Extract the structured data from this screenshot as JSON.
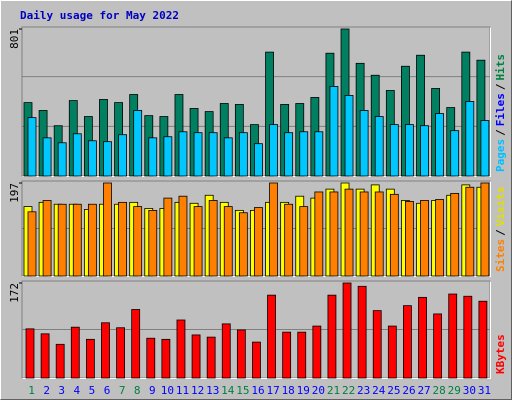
{
  "chart_data": [
    {
      "type": "bar",
      "title": "Daily usage for May 2022",
      "ylim": [
        0,
        801
      ],
      "yticks": [
        801
      ],
      "legend": [
        {
          "text": "Pages",
          "color": "#00c0ff"
        },
        {
          "text": "/",
          "color": "#000000"
        },
        {
          "text": "Files",
          "color": "#0000ff"
        },
        {
          "text": "/",
          "color": "#000000"
        },
        {
          "text": "Hits",
          "color": "#008040"
        }
      ],
      "series": [
        {
          "name": "Hits",
          "color": "#008060",
          "values": [
            400,
            357,
            274,
            411,
            324,
            417,
            400,
            444,
            329,
            324,
            444,
            368,
            351,
            395,
            390,
            280,
            675,
            390,
            395,
            428,
            669,
            801,
            614,
            549,
            466,
            598,
            658,
            477,
            373,
            675,
            631
          ]
        },
        {
          "name": "Pages",
          "color": "#00c8ff",
          "values": [
            318,
            208,
            181,
            230,
            192,
            187,
            225,
            357,
            208,
            214,
            241,
            236,
            236,
            208,
            236,
            176,
            280,
            236,
            241,
            241,
            488,
            439,
            357,
            324,
            280,
            280,
            274,
            340,
            247,
            406,
            302
          ]
        }
      ]
    },
    {
      "type": "bar",
      "ylim": [
        0,
        197
      ],
      "yticks": [
        197
      ],
      "legend": [
        {
          "text": "Sites",
          "color": "#ff8000"
        },
        {
          "text": "/",
          "color": "#000000"
        },
        {
          "text": "Visits",
          "color": "#e0e000"
        }
      ],
      "series": [
        {
          "name": "Visits",
          "color": "#ffff00",
          "values": [
            147,
            156,
            152,
            152,
            141,
            152,
            152,
            156,
            143,
            143,
            156,
            154,
            171,
            156,
            139,
            139,
            156,
            156,
            169,
            165,
            184,
            197,
            184,
            193,
            184,
            160,
            154,
            160,
            171,
            193,
            188
          ]
        },
        {
          "name": "Sites",
          "color": "#ff8000",
          "values": [
            136,
            160,
            152,
            152,
            152,
            197,
            156,
            147,
            139,
            165,
            169,
            147,
            160,
            147,
            134,
            145,
            197,
            152,
            147,
            178,
            178,
            184,
            178,
            178,
            173,
            158,
            160,
            162,
            175,
            188,
            197
          ]
        }
      ]
    },
    {
      "type": "bar",
      "ylim": [
        0,
        172
      ],
      "yticks": [
        172
      ],
      "legend": [
        {
          "text": "KBytes",
          "color": "#ff0000"
        }
      ],
      "categories": [
        "1",
        "2",
        "3",
        "4",
        "5",
        "6",
        "7",
        "8",
        "9",
        "10",
        "11",
        "12",
        "13",
        "14",
        "15",
        "16",
        "17",
        "18",
        "19",
        "20",
        "21",
        "22",
        "23",
        "24",
        "25",
        "26",
        "27",
        "28",
        "29",
        "30",
        "31"
      ],
      "category_colors": [
        "#008040",
        "#0000ff",
        "#0000ff",
        "#0000ff",
        "#0000ff",
        "#0000ff",
        "#008040",
        "#008040",
        "#0000ff",
        "#0000ff",
        "#0000ff",
        "#0000ff",
        "#0000ff",
        "#008040",
        "#008040",
        "#0000ff",
        "#0000ff",
        "#0000ff",
        "#0000ff",
        "#0000ff",
        "#008040",
        "#008040",
        "#0000ff",
        "#0000ff",
        "#0000ff",
        "#0000ff",
        "#0000ff",
        "#008040",
        "#008040",
        "#0000ff",
        "#0000ff"
      ],
      "series": [
        {
          "name": "KBytes",
          "color": "#ff0000",
          "values": [
            89,
            80,
            61,
            92,
            70,
            100,
            91,
            124,
            72,
            70,
            105,
            78,
            74,
            98,
            87,
            65,
            150,
            83,
            83,
            94,
            150,
            172,
            166,
            122,
            94,
            131,
            146,
            116,
            152,
            148,
            139
          ]
        }
      ]
    }
  ]
}
